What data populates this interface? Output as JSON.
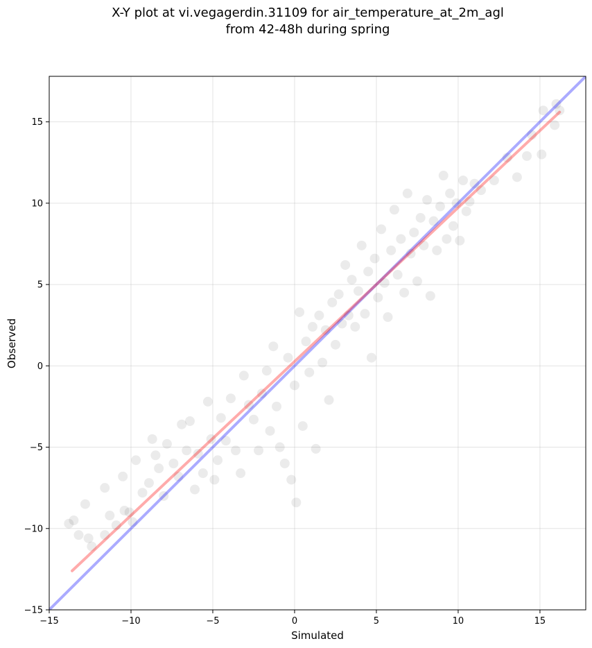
{
  "chart_data": {
    "type": "scatter",
    "title": [
      "X-Y plot at vi.vegagerdin.31109 for air_temperature_at_2m_agl",
      "from 42-48h during spring"
    ],
    "xlabel": "Simulated",
    "ylabel": "Observed",
    "xlim": [
      -15,
      17.8
    ],
    "ylim": [
      -15,
      17.8
    ],
    "xticks": [
      -15,
      -10,
      -5,
      0,
      5,
      10,
      15
    ],
    "yticks": [
      -15,
      -10,
      -5,
      0,
      5,
      10,
      15
    ],
    "tick_labels": {
      "x": [
        "−15",
        "−10",
        "−5",
        "0",
        "5",
        "10",
        "15"
      ],
      "y": [
        "−15",
        "−10",
        "−5",
        "0",
        "5",
        "10",
        "15"
      ]
    },
    "grid": true,
    "point_color": "#000000",
    "point_alpha": 0.08,
    "series": [
      {
        "type": "scatter",
        "points_sample": [
          [
            -13.8,
            -9.7
          ],
          [
            -13.5,
            -9.5
          ],
          [
            -13.2,
            -10.4
          ],
          [
            -12.8,
            -8.5
          ],
          [
            -12.6,
            -10.6
          ],
          [
            -12.4,
            -11.1
          ],
          [
            -11.6,
            -10.4
          ],
          [
            -11.6,
            -7.5
          ],
          [
            -11.3,
            -9.2
          ],
          [
            -10.9,
            -9.8
          ],
          [
            -10.5,
            -6.8
          ],
          [
            -10.4,
            -8.9
          ],
          [
            -10.1,
            -9.0
          ],
          [
            -9.9,
            -9.6
          ],
          [
            -9.7,
            -5.8
          ],
          [
            -9.3,
            -7.8
          ],
          [
            -8.9,
            -7.2
          ],
          [
            -8.7,
            -4.5
          ],
          [
            -8.5,
            -5.5
          ],
          [
            -8.3,
            -6.3
          ],
          [
            -8.0,
            -8.0
          ],
          [
            -7.8,
            -4.8
          ],
          [
            -7.4,
            -6.0
          ],
          [
            -7.1,
            -6.8
          ],
          [
            -6.9,
            -3.6
          ],
          [
            -6.6,
            -5.2
          ],
          [
            -6.4,
            -3.4
          ],
          [
            -6.1,
            -7.6
          ],
          [
            -5.9,
            -5.4
          ],
          [
            -5.6,
            -6.6
          ],
          [
            -5.3,
            -2.2
          ],
          [
            -5.1,
            -4.5
          ],
          [
            -4.9,
            -7.0
          ],
          [
            -4.7,
            -5.8
          ],
          [
            -4.5,
            -3.2
          ],
          [
            -4.2,
            -4.6
          ],
          [
            -3.9,
            -2.0
          ],
          [
            -3.6,
            -5.2
          ],
          [
            -3.3,
            -6.6
          ],
          [
            -3.1,
            -0.6
          ],
          [
            -2.8,
            -2.4
          ],
          [
            -2.5,
            -3.3
          ],
          [
            -2.2,
            -5.2
          ],
          [
            -2.0,
            -1.7
          ],
          [
            -1.7,
            -0.3
          ],
          [
            -1.5,
            -4.0
          ],
          [
            -1.3,
            1.2
          ],
          [
            -1.1,
            -2.5
          ],
          [
            -0.9,
            -5.0
          ],
          [
            -0.6,
            -6.0
          ],
          [
            -0.4,
            0.5
          ],
          [
            -0.2,
            -7.0
          ],
          [
            0.0,
            -1.2
          ],
          [
            0.1,
            -8.4
          ],
          [
            0.3,
            3.3
          ],
          [
            0.5,
            -3.7
          ],
          [
            0.7,
            1.5
          ],
          [
            0.9,
            -0.4
          ],
          [
            1.1,
            2.4
          ],
          [
            1.3,
            -5.1
          ],
          [
            1.5,
            3.1
          ],
          [
            1.7,
            0.2
          ],
          [
            1.9,
            2.2
          ],
          [
            2.1,
            -2.1
          ],
          [
            2.3,
            3.9
          ],
          [
            2.5,
            1.3
          ],
          [
            2.7,
            4.4
          ],
          [
            2.9,
            2.6
          ],
          [
            3.1,
            6.2
          ],
          [
            3.3,
            3.1
          ],
          [
            3.5,
            5.3
          ],
          [
            3.7,
            2.4
          ],
          [
            3.9,
            4.6
          ],
          [
            4.1,
            7.4
          ],
          [
            4.3,
            3.2
          ],
          [
            4.5,
            5.8
          ],
          [
            4.7,
            0.5
          ],
          [
            4.9,
            6.6
          ],
          [
            5.1,
            4.2
          ],
          [
            5.3,
            8.4
          ],
          [
            5.5,
            5.1
          ],
          [
            5.7,
            3.0
          ],
          [
            5.9,
            7.1
          ],
          [
            6.1,
            9.6
          ],
          [
            6.3,
            5.6
          ],
          [
            6.5,
            7.8
          ],
          [
            6.7,
            4.5
          ],
          [
            6.9,
            10.6
          ],
          [
            7.1,
            6.9
          ],
          [
            7.3,
            8.2
          ],
          [
            7.5,
            5.2
          ],
          [
            7.7,
            9.1
          ],
          [
            7.9,
            7.4
          ],
          [
            8.1,
            10.2
          ],
          [
            8.3,
            4.3
          ],
          [
            8.5,
            8.9
          ],
          [
            8.7,
            7.1
          ],
          [
            8.9,
            9.8
          ],
          [
            9.1,
            11.7
          ],
          [
            9.3,
            7.8
          ],
          [
            9.5,
            10.6
          ],
          [
            9.7,
            8.6
          ],
          [
            9.9,
            10.0
          ],
          [
            10.1,
            7.7
          ],
          [
            10.3,
            11.4
          ],
          [
            10.5,
            9.5
          ],
          [
            10.7,
            10.1
          ],
          [
            11.0,
            11.2
          ],
          [
            11.4,
            10.8
          ],
          [
            12.2,
            11.4
          ],
          [
            13.0,
            12.8
          ],
          [
            13.6,
            11.6
          ],
          [
            14.2,
            12.9
          ],
          [
            14.5,
            14.2
          ],
          [
            15.1,
            13.0
          ],
          [
            15.2,
            15.7
          ],
          [
            15.9,
            14.8
          ],
          [
            16.0,
            16.1
          ],
          [
            16.2,
            15.7
          ]
        ]
      }
    ],
    "lines": [
      {
        "name": "one-to-one",
        "color": "#0000ff",
        "alpha": 0.33,
        "x": [
          -15,
          17.8
        ],
        "y": [
          -15,
          17.8
        ]
      },
      {
        "name": "fit",
        "color": "#ff0000",
        "alpha": 0.33,
        "x": [
          -13.6,
          16.2
        ],
        "y": [
          -12.6,
          15.6
        ]
      }
    ]
  }
}
